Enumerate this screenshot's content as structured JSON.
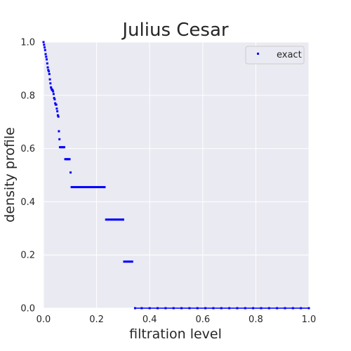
{
  "chart_data": {
    "type": "scatter",
    "title": "Julius Cesar",
    "xlabel": "filtration level",
    "ylabel": "density profile",
    "xlim": [
      0,
      1
    ],
    "ylim": [
      0,
      1
    ],
    "xticks": [
      "0.0",
      "0.2",
      "0.4",
      "0.6",
      "0.8",
      "1.0"
    ],
    "yticks": [
      "0.0",
      "0.2",
      "0.4",
      "0.6",
      "0.8",
      "1.0"
    ],
    "grid": true,
    "legend_position": "top-right",
    "background_color": "#eaeaf2",
    "grid_color": "#ffffff",
    "series": [
      {
        "name": "exact",
        "color": "#0000ff",
        "points": [
          [
            0.0,
            1.0
          ],
          [
            0.002,
            0.99
          ],
          [
            0.004,
            0.98
          ],
          [
            0.006,
            0.97
          ],
          [
            0.008,
            0.955
          ],
          [
            0.01,
            0.945
          ],
          [
            0.012,
            0.935
          ],
          [
            0.014,
            0.92
          ],
          [
            0.016,
            0.905
          ],
          [
            0.018,
            0.895
          ],
          [
            0.02,
            0.89
          ],
          [
            0.022,
            0.88
          ],
          [
            0.024,
            0.86
          ],
          [
            0.026,
            0.845
          ],
          [
            0.028,
            0.83
          ],
          [
            0.03,
            0.825
          ],
          [
            0.032,
            0.82
          ],
          [
            0.034,
            0.82
          ],
          [
            0.036,
            0.815
          ],
          [
            0.038,
            0.805
          ],
          [
            0.04,
            0.79
          ],
          [
            0.042,
            0.785
          ],
          [
            0.044,
            0.77
          ],
          [
            0.046,
            0.765
          ],
          [
            0.048,
            0.765
          ],
          [
            0.05,
            0.75
          ],
          [
            0.052,
            0.74
          ],
          [
            0.054,
            0.725
          ],
          [
            0.056,
            0.72
          ],
          [
            0.058,
            0.665
          ],
          [
            0.06,
            0.635
          ],
          [
            0.062,
            0.605
          ],
          [
            0.066,
            0.605
          ],
          [
            0.07,
            0.605
          ],
          [
            0.074,
            0.605
          ],
          [
            0.078,
            0.605
          ],
          [
            0.082,
            0.56
          ],
          [
            0.086,
            0.56
          ],
          [
            0.09,
            0.56
          ],
          [
            0.094,
            0.56
          ],
          [
            0.098,
            0.56
          ],
          [
            0.102,
            0.51
          ],
          [
            0.106,
            0.455
          ],
          [
            0.112,
            0.455
          ],
          [
            0.118,
            0.455
          ],
          [
            0.124,
            0.455
          ],
          [
            0.13,
            0.455
          ],
          [
            0.136,
            0.455
          ],
          [
            0.142,
            0.455
          ],
          [
            0.148,
            0.455
          ],
          [
            0.154,
            0.455
          ],
          [
            0.16,
            0.455
          ],
          [
            0.166,
            0.455
          ],
          [
            0.172,
            0.455
          ],
          [
            0.178,
            0.455
          ],
          [
            0.184,
            0.455
          ],
          [
            0.19,
            0.455
          ],
          [
            0.196,
            0.455
          ],
          [
            0.202,
            0.455
          ],
          [
            0.208,
            0.455
          ],
          [
            0.214,
            0.455
          ],
          [
            0.22,
            0.455
          ],
          [
            0.226,
            0.455
          ],
          [
            0.23,
            0.455
          ],
          [
            0.236,
            0.333
          ],
          [
            0.242,
            0.333
          ],
          [
            0.248,
            0.333
          ],
          [
            0.254,
            0.333
          ],
          [
            0.26,
            0.333
          ],
          [
            0.266,
            0.333
          ],
          [
            0.272,
            0.333
          ],
          [
            0.278,
            0.333
          ],
          [
            0.284,
            0.333
          ],
          [
            0.29,
            0.333
          ],
          [
            0.296,
            0.333
          ],
          [
            0.3,
            0.333
          ],
          [
            0.304,
            0.175
          ],
          [
            0.31,
            0.175
          ],
          [
            0.316,
            0.175
          ],
          [
            0.322,
            0.175
          ],
          [
            0.328,
            0.175
          ],
          [
            0.334,
            0.175
          ],
          [
            0.345,
            0.0
          ],
          [
            0.37,
            0.0
          ],
          [
            0.4,
            0.0
          ],
          [
            0.43,
            0.0
          ],
          [
            0.46,
            0.0
          ],
          [
            0.49,
            0.0
          ],
          [
            0.52,
            0.0
          ],
          [
            0.55,
            0.0
          ],
          [
            0.58,
            0.0
          ],
          [
            0.61,
            0.0
          ],
          [
            0.64,
            0.0
          ],
          [
            0.67,
            0.0
          ],
          [
            0.7,
            0.0
          ],
          [
            0.73,
            0.0
          ],
          [
            0.76,
            0.0
          ],
          [
            0.79,
            0.0
          ],
          [
            0.82,
            0.0
          ],
          [
            0.85,
            0.0
          ],
          [
            0.88,
            0.0
          ],
          [
            0.91,
            0.0
          ],
          [
            0.94,
            0.0
          ],
          [
            0.97,
            0.0
          ],
          [
            1.0,
            0.0
          ]
        ]
      }
    ]
  }
}
